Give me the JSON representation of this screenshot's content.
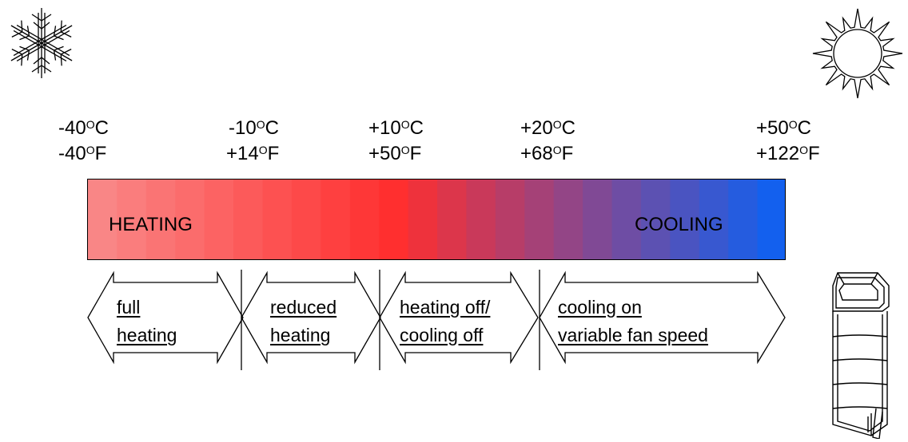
{
  "temperatures": [
    {
      "celsius": "-40",
      "fahrenheit": "-40"
    },
    {
      "celsius": "-10",
      "fahrenheit": "+14"
    },
    {
      "celsius": "+10",
      "fahrenheit": "+50"
    },
    {
      "celsius": "+20",
      "fahrenheit": "+68"
    },
    {
      "celsius": "+50",
      "fahrenheit": "+122"
    }
  ],
  "units": {
    "degree": "O",
    "c": "C",
    "f": "F"
  },
  "bar": {
    "left_label": "HEATING",
    "right_label": "COOLING",
    "colors": {
      "cold_end": "#f98a8a",
      "mid": "#ff2e2e",
      "hot_end": "#0a62f5"
    }
  },
  "zones": [
    {
      "line1": "full",
      "line2": "heating"
    },
    {
      "line1": "reduced",
      "line2": "heating"
    },
    {
      "line1": "heating off/",
      "line2": "cooling off"
    },
    {
      "line1": "cooling on",
      "line2": "variable fan speed"
    }
  ],
  "icons": [
    "snowflake-icon",
    "sun-icon",
    "heat-pump-unit-icon"
  ]
}
